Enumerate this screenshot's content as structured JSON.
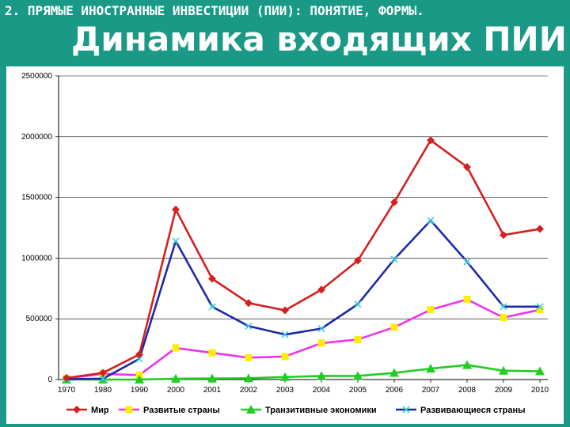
{
  "header": {
    "section_title": "2. ПРЯМЫЕ ИНОСТРАННЫЕ ИНВЕСТИЦИИ (ПИИ): ПОНЯТИЕ, ФОРМЫ.",
    "slide_title": "Динамика входящих ПИИ"
  },
  "colors": {
    "background": "#1a9a86",
    "world": "#d42020",
    "developed": "#ee33ee",
    "transition": "#22cc22",
    "developing": "#1d2aa8"
  },
  "chart_data": {
    "type": "line",
    "title": "",
    "xlabel": "",
    "ylabel": "",
    "x": [
      "1970",
      "1980",
      "1990",
      "2000",
      "2001",
      "2002",
      "2003",
      "2004",
      "2005",
      "2006",
      "2007",
      "2008",
      "2009",
      "2010"
    ],
    "ylim": [
      0,
      2500000
    ],
    "yticks": [
      "0",
      "500000",
      "1000000",
      "1500000",
      "2000000",
      "2500000"
    ],
    "grid": "horizontal",
    "legend_position": "bottom",
    "series": [
      {
        "name": "Мир",
        "color": "#d42020",
        "marker": "diamond",
        "values": [
          13000,
          55000,
          207000,
          1400000,
          830000,
          630000,
          570000,
          740000,
          980000,
          1460000,
          1970000,
          1750000,
          1190000,
          1240000
        ]
      },
      {
        "name": "Развитые страны",
        "color": "#ee33ee",
        "marker": "square",
        "values": [
          10000,
          47000,
          36000,
          260000,
          220000,
          180000,
          190000,
          300000,
          330000,
          430000,
          575000,
          660000,
          510000,
          575000
        ]
      },
      {
        "name": "Транзитивные экономики",
        "color": "#22cc22",
        "marker": "triangle",
        "values": [
          0,
          0,
          0,
          7000,
          9000,
          11000,
          21000,
          30000,
          30000,
          55000,
          90000,
          120000,
          73000,
          68000
        ]
      },
      {
        "name": "Развивающиеся страны",
        "color": "#1d2aa8",
        "marker": "x",
        "values": [
          3000,
          7000,
          170000,
          1140000,
          600000,
          440000,
          370000,
          420000,
          620000,
          990000,
          1310000,
          970000,
          600000,
          600000
        ]
      }
    ]
  }
}
